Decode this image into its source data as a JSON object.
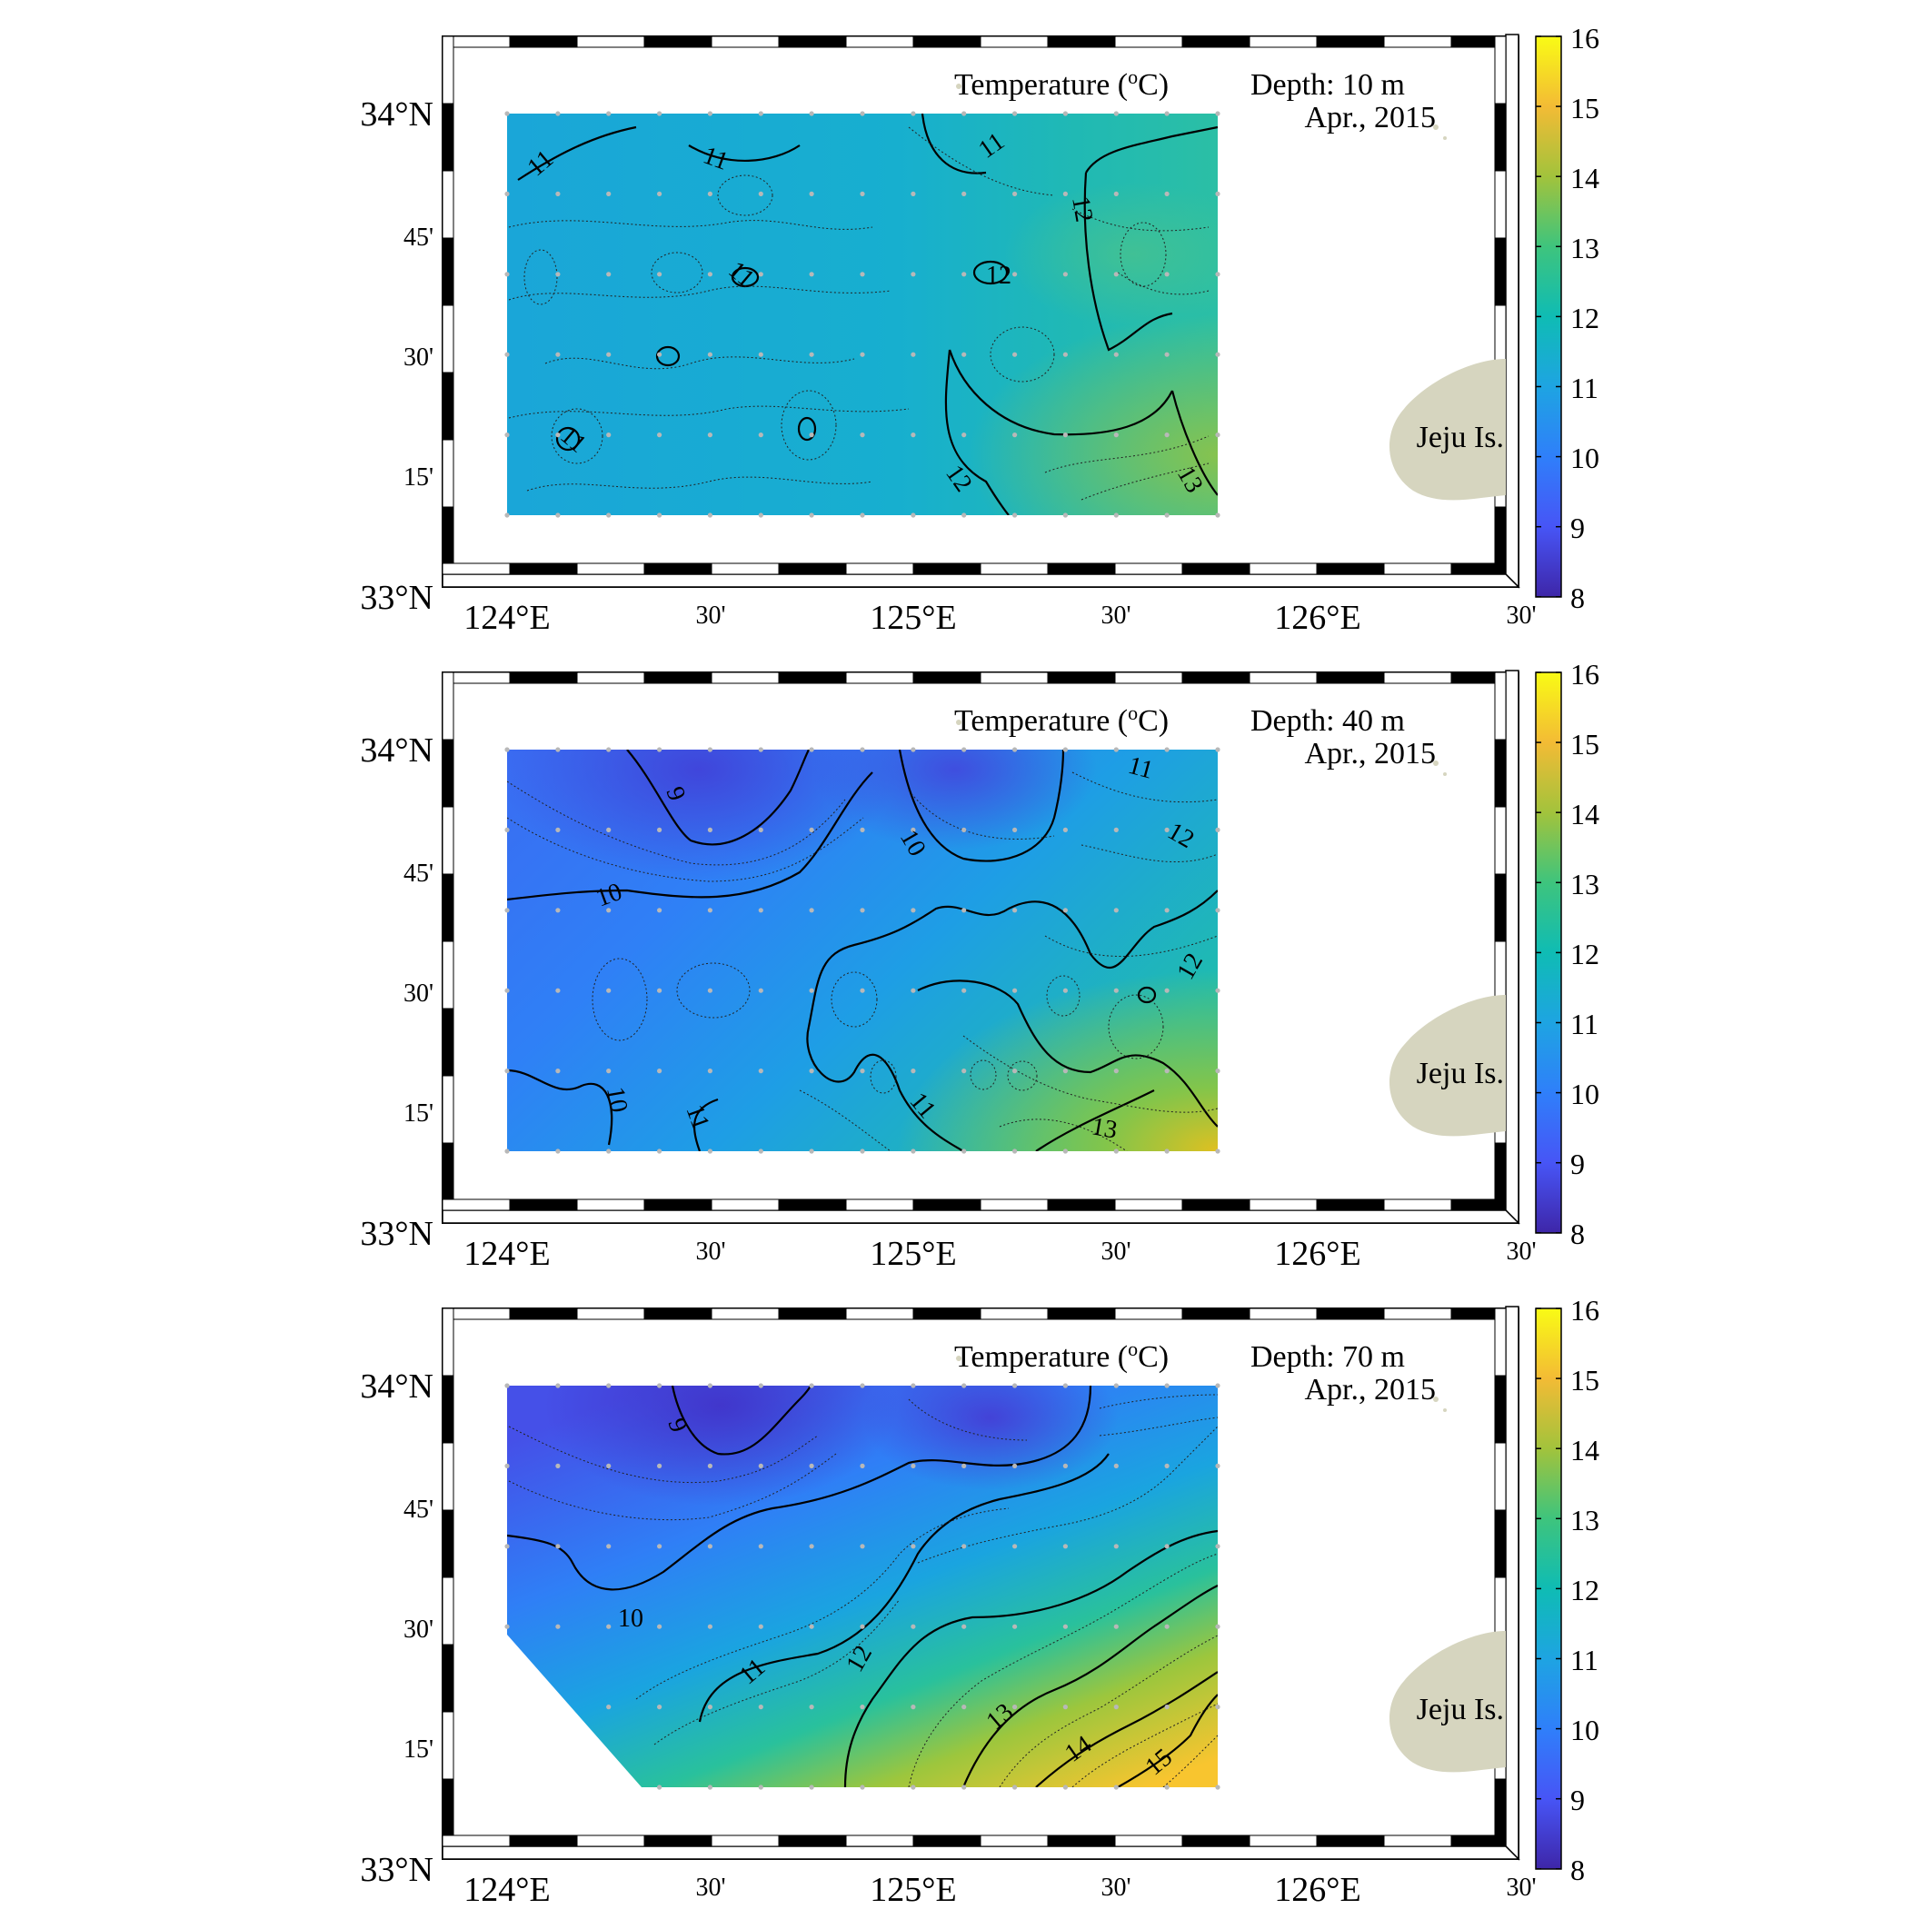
{
  "panels": [
    {
      "title": "Temperature (",
      "title_sup": "o",
      "title_unit": "C)",
      "depth": "Depth: 10 m",
      "date": "Apr., 2015",
      "island": "Jeju Is.",
      "contour_labels": [
        "11",
        "11",
        "11",
        "11",
        "11",
        "12",
        "12",
        "12",
        "13"
      ]
    },
    {
      "title": "Temperature (",
      "title_sup": "o",
      "title_unit": "C)",
      "depth": "Depth: 40 m",
      "date": "Apr., 2015",
      "island": "Jeju Is.",
      "contour_labels": [
        "9",
        "10",
        "10",
        "10",
        "11",
        "11",
        "11",
        "12",
        "12",
        "13"
      ]
    },
    {
      "title": "Temperature (",
      "title_sup": "o",
      "title_unit": "C)",
      "depth": "Depth: 70 m",
      "date": "Apr., 2015",
      "island": "Jeju Is.",
      "contour_labels": [
        "9",
        "10",
        "11",
        "12",
        "13",
        "14",
        "15"
      ]
    }
  ],
  "axes": {
    "lat_labels": [
      "34°N",
      "45'",
      "30'",
      "15'",
      "33°N"
    ],
    "lon_labels": [
      "124°E",
      "30'",
      "125°E",
      "30'",
      "126°E",
      "30'"
    ]
  },
  "colorbar": {
    "ticks": [
      "16",
      "15",
      "14",
      "13",
      "12",
      "11",
      "10",
      "9",
      "8"
    ],
    "min": 8,
    "max": 16,
    "colormap": "parula"
  },
  "colors": {
    "land": "#d6d5bf",
    "station": "#b8b8b8"
  }
}
